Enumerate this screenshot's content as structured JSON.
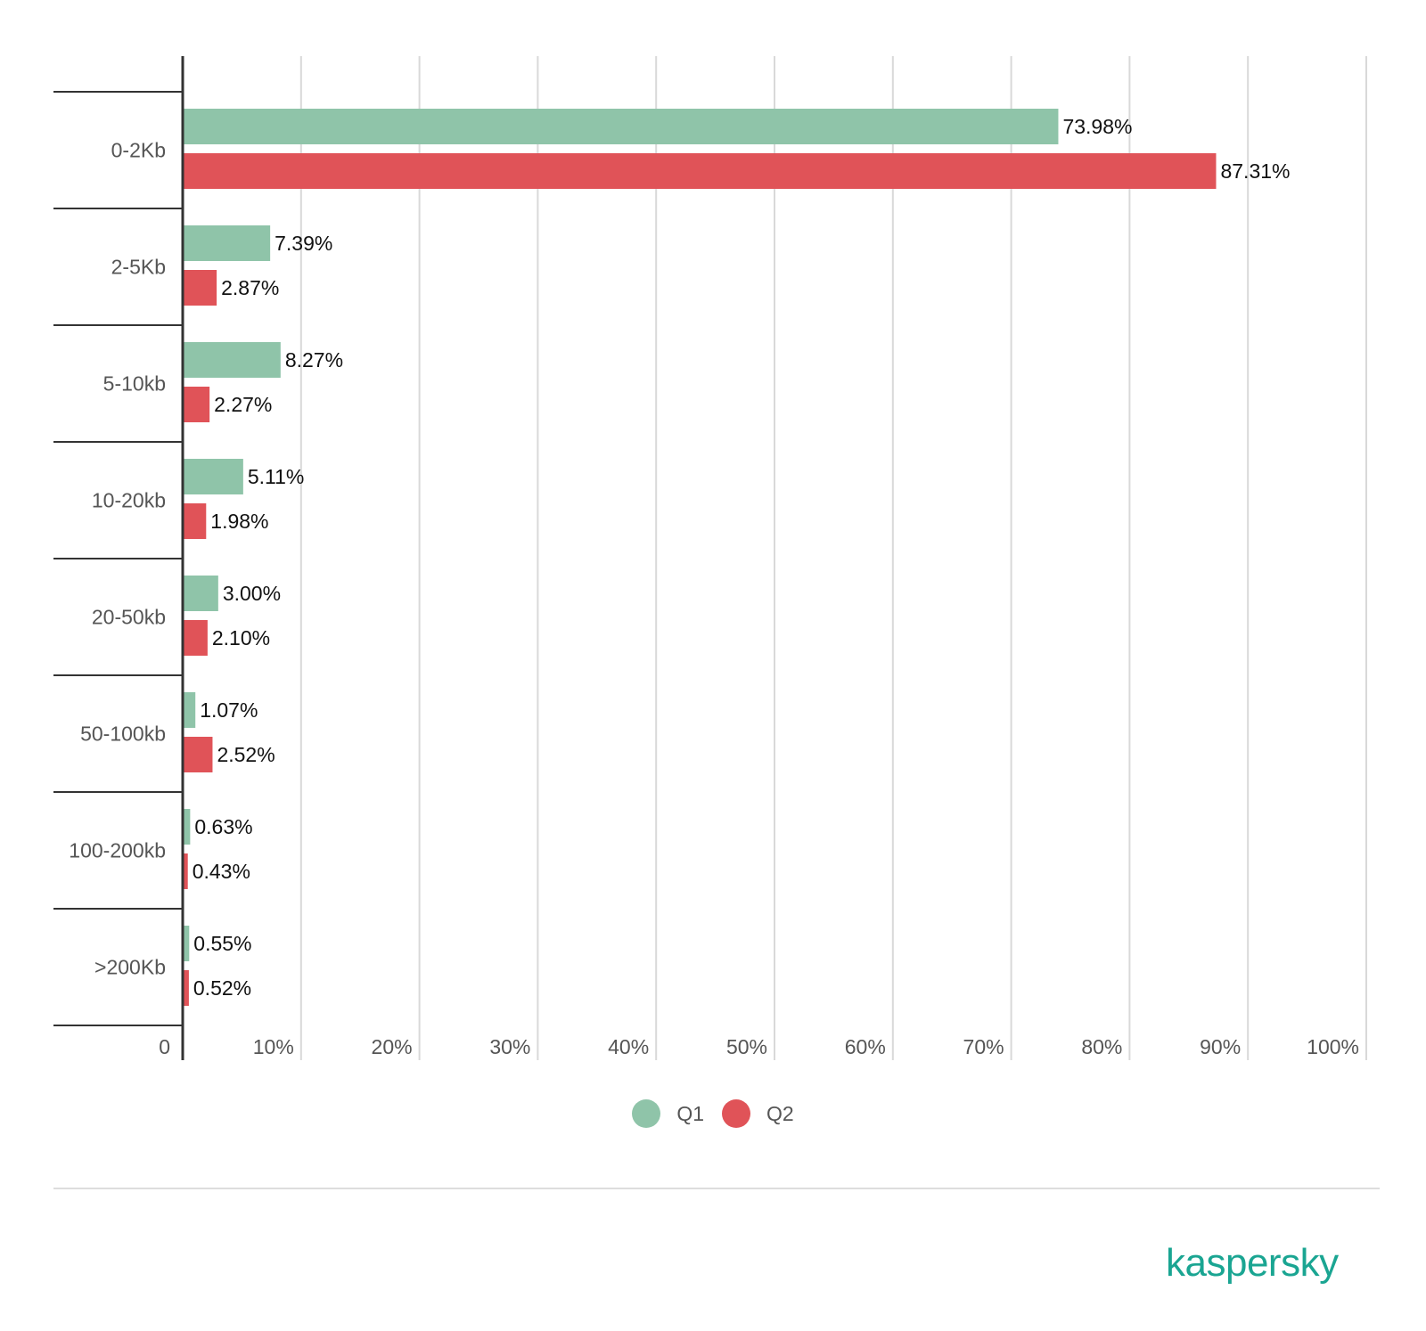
{
  "chart_data": {
    "type": "bar",
    "orientation": "horizontal",
    "categories": [
      "0-2Kb",
      "2-5Kb",
      "5-10kb",
      "10-20kb",
      "20-50kb",
      "50-100kb",
      "100-200kb",
      ">200Kb"
    ],
    "series": [
      {
        "name": "Q1",
        "color": "#8fc4a9",
        "values": [
          73.98,
          7.39,
          8.27,
          5.11,
          3.0,
          1.07,
          0.63,
          0.55
        ],
        "labels": [
          "73.98%",
          "7.39%",
          "8.27%",
          "5.11%",
          "3.00%",
          "1.07%",
          "0.63%",
          "0.55%"
        ]
      },
      {
        "name": "Q2",
        "color": "#e05358",
        "values": [
          87.31,
          2.87,
          2.27,
          1.98,
          2.1,
          2.52,
          0.43,
          0.52
        ],
        "labels": [
          "87.31%",
          "2.87%",
          "2.27%",
          "1.98%",
          "2.10%",
          "2.52%",
          "0.43%",
          "0.52%"
        ]
      }
    ],
    "xlim": [
      0,
      100
    ],
    "xticks": [
      0,
      10,
      20,
      30,
      40,
      50,
      60,
      70,
      80,
      90,
      100
    ],
    "xtick_labels": [
      "0",
      "10%",
      "20%",
      "30%",
      "40%",
      "50%",
      "60%",
      "70%",
      "80%",
      "90%",
      "100%"
    ],
    "grid": true,
    "legend_position": "bottom-center"
  },
  "legend": [
    {
      "label": "Q1",
      "color": "#8fc4a9"
    },
    {
      "label": "Q2",
      "color": "#e05358"
    }
  ],
  "brand": {
    "name": "kaspersky",
    "color": "#1aa592"
  }
}
